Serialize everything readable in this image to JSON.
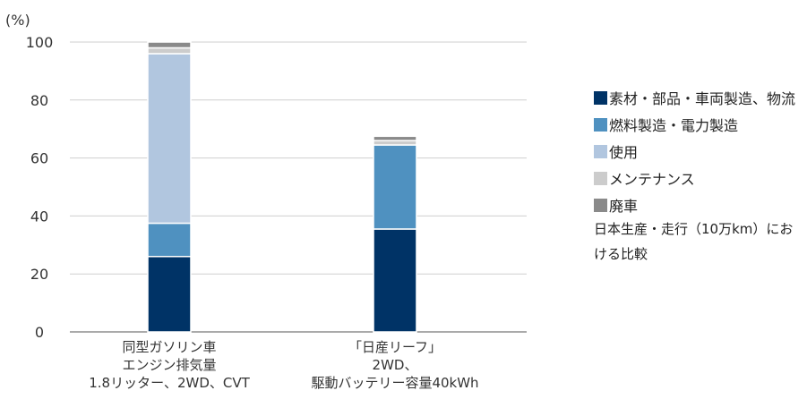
{
  "chart_data": {
    "type": "bar",
    "stacked": true,
    "y_unit": "(%)",
    "ylim": [
      0,
      100
    ],
    "yticks": [
      0,
      20,
      40,
      60,
      80,
      100
    ],
    "grid": true,
    "legend_position": "right",
    "categories": [
      [
        "同型ガソリン車",
        "エンジン排気量",
        "1.8リッター、2WD、CVT"
      ],
      [
        "「日産リーフ」",
        "2WD、",
        "駆動バッテリー容量40kWh"
      ]
    ],
    "series": [
      {
        "name": "素材・部品・車両製造、物流",
        "color": "#003366",
        "values": [
          26,
          35.5
        ]
      },
      {
        "name": "燃料製造・電力製造",
        "color": "#4f91c0",
        "values": [
          11.5,
          29
        ]
      },
      {
        "name": "使用",
        "color": "#b1c6df",
        "values": [
          58.5,
          0
        ]
      },
      {
        "name": "メンテナンス",
        "color": "#cccccc",
        "values": [
          2,
          1.5
        ]
      },
      {
        "name": "廃車",
        "color": "#8a8a8a",
        "values": [
          2,
          1.5
        ]
      }
    ]
  },
  "note": "日本生産・走行（10万km）における比較"
}
